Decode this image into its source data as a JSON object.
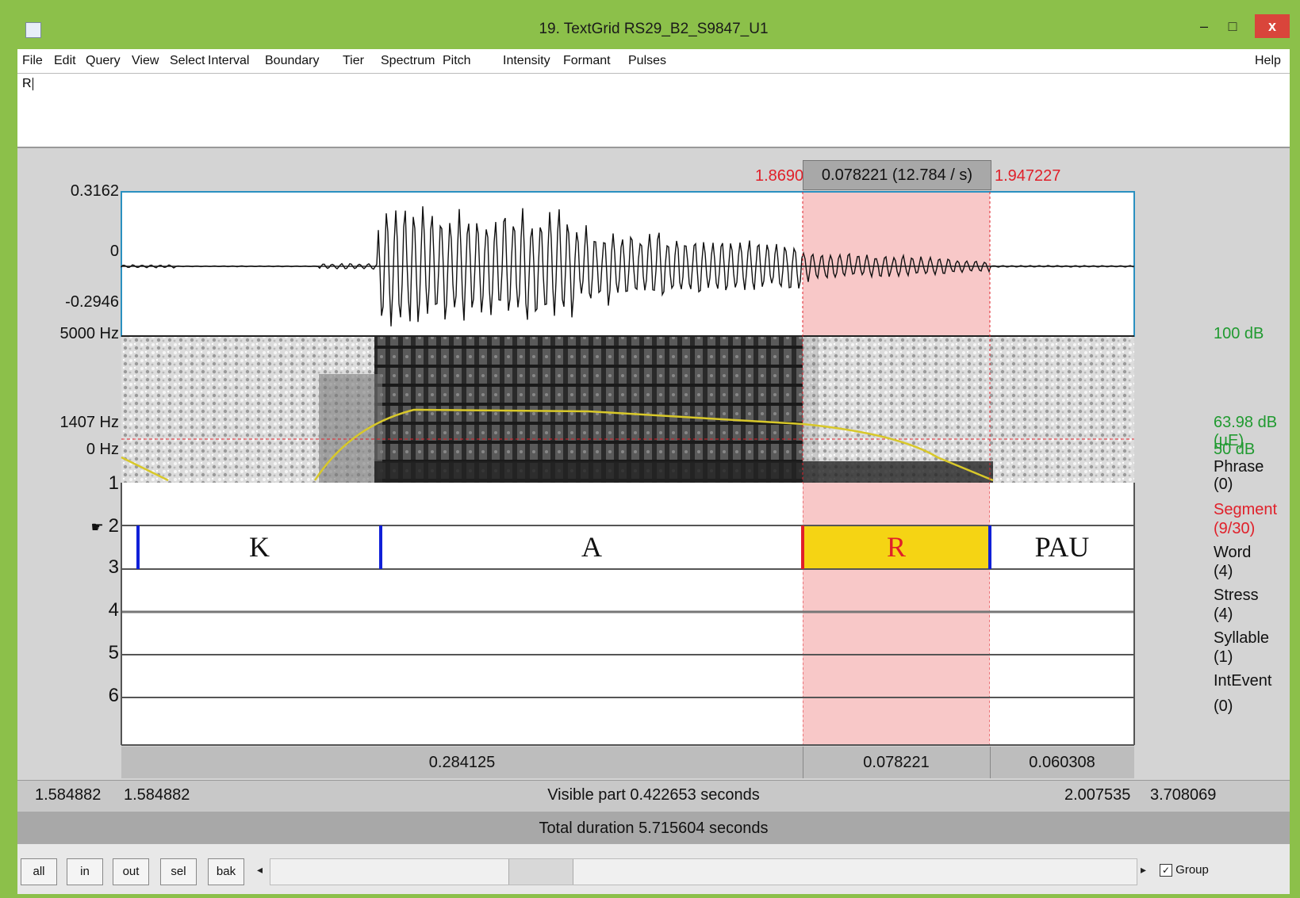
{
  "window": {
    "title": "19. TextGrid RS29_B2_S9847_U1",
    "minimize": "–",
    "maximize": "□",
    "close": "x"
  },
  "menu": [
    "File",
    "Edit",
    "Query",
    "View",
    "Select",
    "Interval",
    "Boundary",
    "Tier",
    "Spectrum",
    "Pitch",
    "Intensity",
    "Formant",
    "Pulses"
  ],
  "menu_help": "Help",
  "text_field_value": "R",
  "selection": {
    "start": "1.869006",
    "duration_label": "0.078221 (12.784 / s)",
    "end": "1.947227"
  },
  "waveform": {
    "y_max": "0.3162",
    "y_zero": "0",
    "y_min": "-0.2946"
  },
  "spectrogram": {
    "top_hz": "5000 Hz",
    "cursor_hz": "1407 Hz",
    "bottom_hz": "0 Hz",
    "db_top": "100 dB",
    "db_cursor": "63.98 dB (µE)",
    "db_bottom": "50 dB"
  },
  "tiers": [
    {
      "number": "1",
      "name": "Phrase",
      "count": "(0)"
    },
    {
      "number": "2",
      "name": "Segment",
      "count": "(9/30)",
      "selected": true
    },
    {
      "number": "3",
      "name": "Word",
      "count": "(4)"
    },
    {
      "number": "4",
      "name": "Stress",
      "count": "(4)"
    },
    {
      "number": "5",
      "name": "Syllable",
      "count": "(1)"
    },
    {
      "number": "6",
      "name": "IntEvent",
      "count": "(0)"
    }
  ],
  "segments": [
    {
      "label": "K"
    },
    {
      "label": "A"
    },
    {
      "label": "R",
      "selected": true
    },
    {
      "label": "PAU"
    }
  ],
  "durations_row": [
    "0.284125",
    "0.078221",
    "0.060308"
  ],
  "time_row": {
    "left_outer": "1.584882",
    "left_visible": "1.584882",
    "visible_part": "Visible part 0.422653 seconds",
    "right_visible": "2.007535",
    "right_outer": "3.708069"
  },
  "total_duration": "Total duration 5.715604 seconds",
  "buttons": {
    "all": "all",
    "in": "in",
    "out": "out",
    "sel": "sel",
    "bak": "bak"
  },
  "group_label": "Group",
  "group_checked": "✓",
  "tier_arrow": "☛",
  "scroll_left": "◂",
  "scroll_right": "▸",
  "colors": {
    "selection_fill": "#f8c8c8",
    "selected_interval": "#f5d414",
    "boundary": "#1020d8",
    "red_text": "#e0202a",
    "pitch_curve": "#d8c82a"
  }
}
